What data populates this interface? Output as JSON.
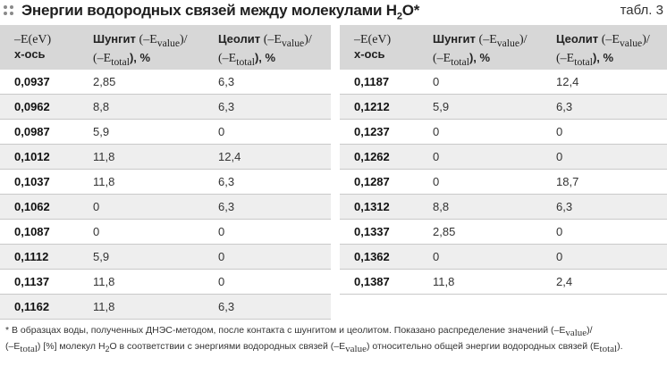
{
  "title": {
    "text": "Энергии водородных связей между молекулами H",
    "sub": "2",
    "tail": "O*",
    "table_no": "табл. 3"
  },
  "columns": {
    "x": {
      "line1": "–E(eV)",
      "line2": "х-ось"
    },
    "shungit": {
      "name": "Шунгит",
      "formula_line1": "(–E",
      "sub1": "value",
      "formula_line1_end": ")/",
      "formula_line2": "(–E",
      "sub2": "total",
      "formula_line2_end": "), %"
    },
    "zeolit": {
      "name": "Цеолит",
      "formula_line1": "(–E",
      "sub1": "value",
      "formula_line1_end": ")/",
      "formula_line2": "(–E",
      "sub2": "total",
      "formula_line2_end": "), %"
    }
  },
  "left_rows": [
    {
      "x": "0,0937",
      "shungit": "2,85",
      "zeolit": "6,3"
    },
    {
      "x": "0,0962",
      "shungit": "8,8",
      "zeolit": "6,3"
    },
    {
      "x": "0,0987",
      "shungit": "5,9",
      "zeolit": "0"
    },
    {
      "x": "0,1012",
      "shungit": "11,8",
      "zeolit": "12,4"
    },
    {
      "x": "0,1037",
      "shungit": "11,8",
      "zeolit": "6,3"
    },
    {
      "x": "0,1062",
      "shungit": "0",
      "zeolit": "6,3"
    },
    {
      "x": "0,1087",
      "shungit": "0",
      "zeolit": "0"
    },
    {
      "x": "0,1112",
      "shungit": "5,9",
      "zeolit": "0"
    },
    {
      "x": "0,1137",
      "shungit": "11,8",
      "zeolit": "0"
    },
    {
      "x": "0,1162",
      "shungit": "11,8",
      "zeolit": "6,3"
    }
  ],
  "right_rows": [
    {
      "x": "0,1187",
      "shungit": "0",
      "zeolit": "12,4"
    },
    {
      "x": "0,1212",
      "shungit": "5,9",
      "zeolit": "6,3"
    },
    {
      "x": "0,1237",
      "shungit": "0",
      "zeolit": "0"
    },
    {
      "x": "0,1262",
      "shungit": "0",
      "zeolit": "0"
    },
    {
      "x": "0,1287",
      "shungit": "0",
      "zeolit": "18,7"
    },
    {
      "x": "0,1312",
      "shungit": "8,8",
      "zeolit": "6,3"
    },
    {
      "x": "0,1337",
      "shungit": "2,85",
      "zeolit": "0"
    },
    {
      "x": "0,1362",
      "shungit": "0",
      "zeolit": "0"
    },
    {
      "x": "0,1387",
      "shungit": "11,8",
      "zeolit": "2,4"
    }
  ],
  "footnote": {
    "p1": "* В образцах воды, полученных ДНЭС-методом, после контакта с шунгитом и цеолитом. Показано распределение значений (–E",
    "s1": "value",
    "p2": ")/",
    "p3": "(–E",
    "s2": "total",
    "p4": ") [%] молекул H",
    "s3": "2",
    "p5": "O в соответствии с энергиями водородных связей (–E",
    "s4": "value",
    "p6": ") относительно общей энергии водородных связей (E",
    "s5": "total",
    "p7": ")."
  }
}
